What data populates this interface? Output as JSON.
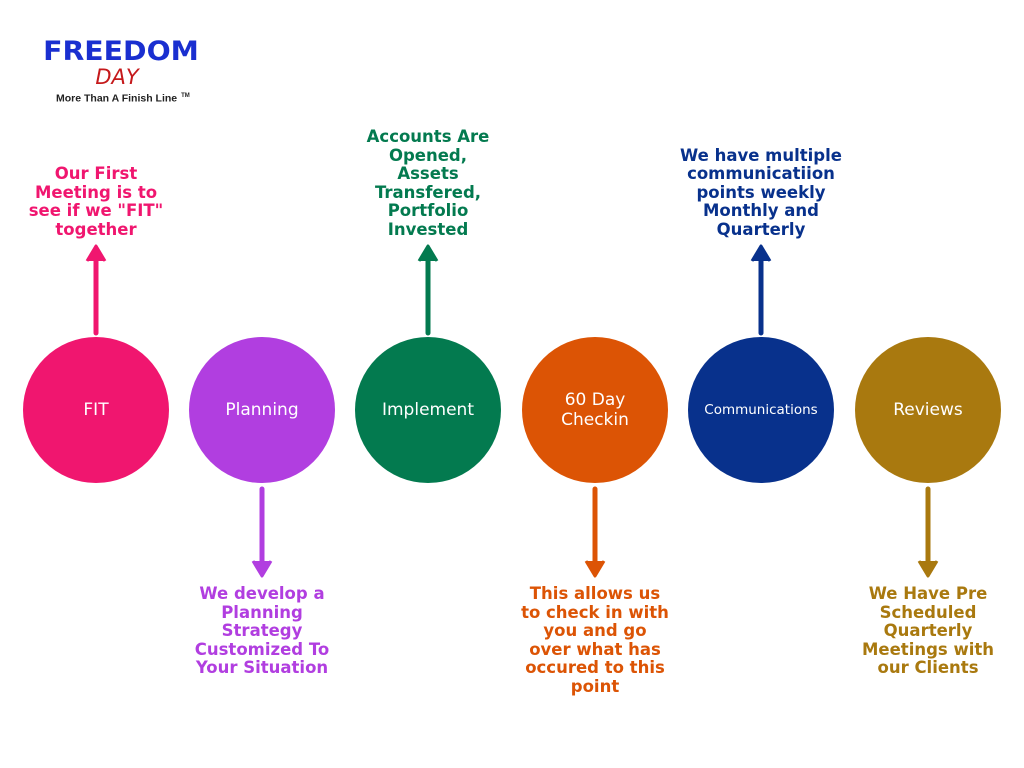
{
  "logo": {
    "title": "FREEDOM",
    "subtitle": "DAY",
    "tagline": "More Than A Finish Line",
    "trademark": "TM"
  },
  "steps": [
    {
      "label": "FIT",
      "color": "#f0166f",
      "note": "Our First Meeting is to see if we \"FIT\" together",
      "note_position": "above"
    },
    {
      "label": "Planning",
      "color": "#b13ee0",
      "note": "We develop a Planning Strategy Customized To Your Situation",
      "note_position": "below"
    },
    {
      "label": "Implement",
      "color": "#037a4f",
      "note": "Accounts Are Opened, Assets Transfered, Portfolio Invested",
      "note_position": "above"
    },
    {
      "label": "60 Day Checkin",
      "color": "#dc5405",
      "note": "This allows us to check in with you and go over what has occured to this point",
      "note_position": "below"
    },
    {
      "label": "Communications",
      "color": "#08318c",
      "note": "We have multiple communicatiion points weekly Monthly and Quarterly",
      "note_position": "above"
    },
    {
      "label": "Reviews",
      "color": "#a9790f",
      "note": "We Have Pre Scheduled Quarterly Meetings with our Clients",
      "note_position": "below"
    }
  ]
}
